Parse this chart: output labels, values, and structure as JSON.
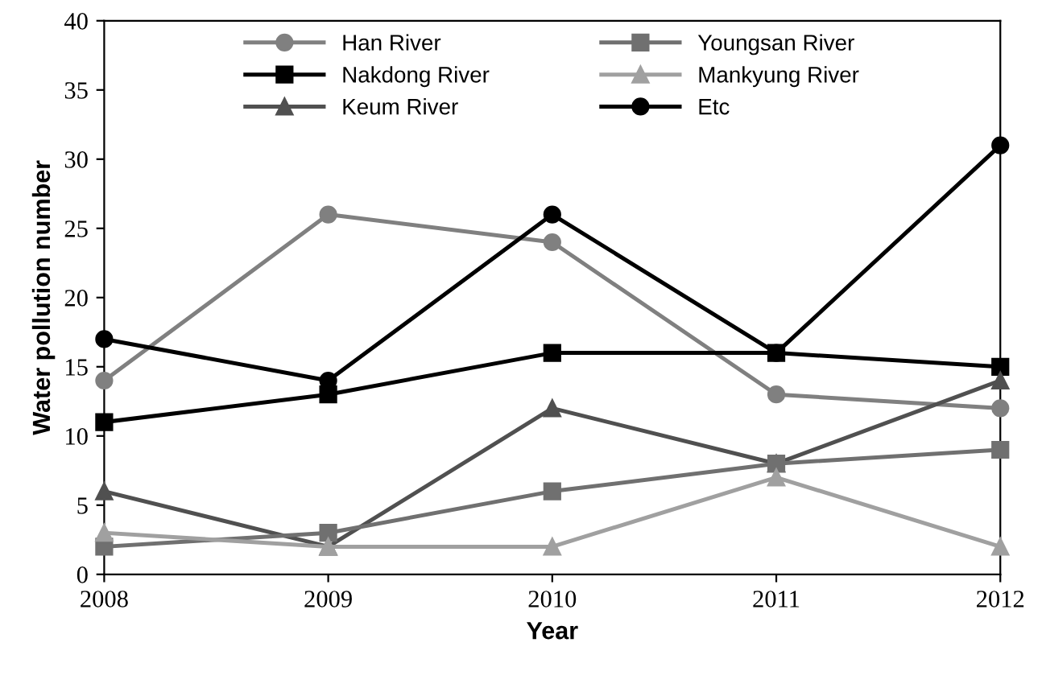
{
  "chart_data": {
    "type": "line",
    "xlabel": "Year",
    "ylabel": "Water pollution number",
    "x": [
      2008,
      2009,
      2010,
      2011,
      2012
    ],
    "xlim": [
      2008,
      2012
    ],
    "xticks": [
      2008,
      2009,
      2010,
      2011,
      2012
    ],
    "ylim": [
      0,
      40
    ],
    "yticks": [
      0,
      5,
      10,
      15,
      20,
      25,
      30,
      35,
      40
    ],
    "grid": false,
    "legend": "top",
    "series": [
      {
        "name": "Han River",
        "color": "#808080",
        "values": [
          14,
          26,
          24,
          13,
          12
        ],
        "marker": "circle"
      },
      {
        "name": "Nakdong River",
        "color": "#000000",
        "values": [
          11,
          13,
          16,
          16,
          15
        ],
        "marker": "square"
      },
      {
        "name": "Keum River",
        "color": "#505050",
        "values": [
          6,
          2,
          12,
          8,
          14
        ],
        "marker": "triangle"
      },
      {
        "name": "Youngsan River",
        "color": "#707070",
        "values": [
          2,
          3,
          6,
          8,
          9
        ],
        "marker": "square"
      },
      {
        "name": "Mankyung River",
        "color": "#a0a0a0",
        "values": [
          3,
          2,
          2,
          7,
          2
        ],
        "marker": "triangle"
      },
      {
        "name": "Etc",
        "color": "#000000",
        "values": [
          17,
          14,
          26,
          16,
          31
        ],
        "marker": "circle"
      }
    ]
  }
}
